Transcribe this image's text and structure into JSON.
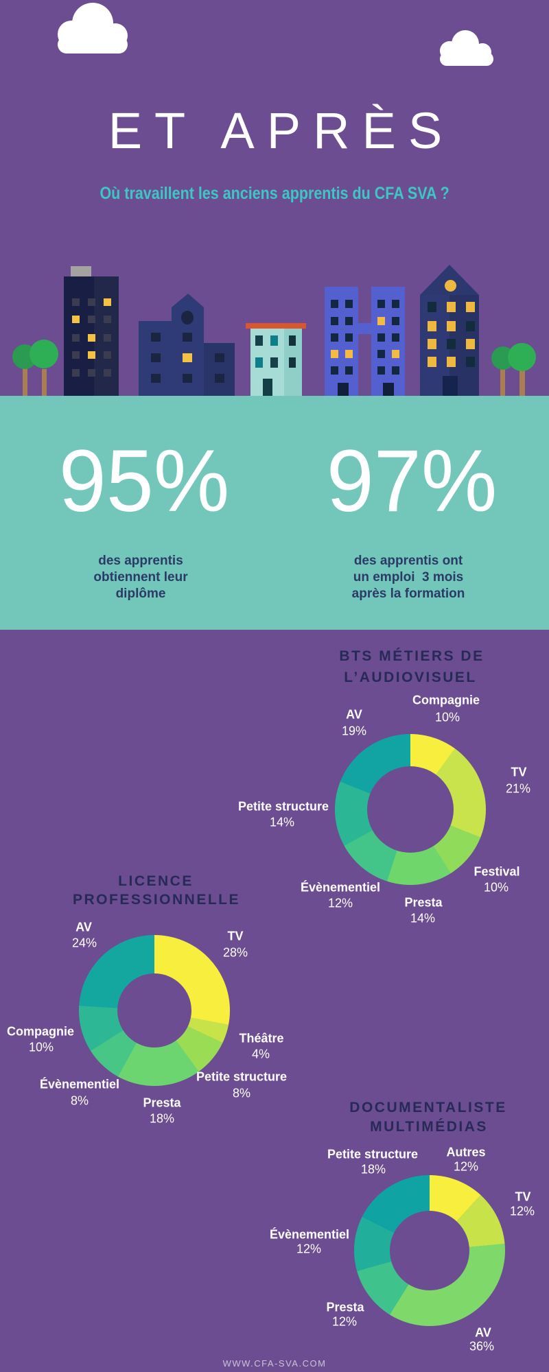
{
  "palette": {
    "background_purple": "#6C4D91",
    "band_teal": "#73C6BA",
    "subtitle_teal": "#3EC6C5",
    "heading_navy": "#262A57",
    "caption_navy": "#2B3A67",
    "label_white": "#FFFFFF"
  },
  "header": {
    "title": "ET APRÈS",
    "subtitle": "Où travaillent les anciens apprentis du CFA SVA ?"
  },
  "stats": [
    {
      "value": "95%",
      "caption_lines": [
        "des apprentis",
        "obtiennent leur",
        "diplôme"
      ]
    },
    {
      "value": "97%",
      "caption_lines": [
        "des apprentis ont",
        "un emploi  3 mois",
        "après la formation"
      ]
    }
  ],
  "chart_data": [
    {
      "type": "pie",
      "subtype": "donut",
      "title": "BTS MÉTIERS DE L’AUDIOVISUEL",
      "title_lines": [
        "BTS MÉTIERS DE",
        "L’AUDIOVISUEL"
      ],
      "legend_position": "around",
      "slices": [
        {
          "label": "Compagnie",
          "value": 10,
          "value_label": "10%",
          "color": "#F8EE3E"
        },
        {
          "label": "TV",
          "value": 21,
          "value_label": "21%",
          "color": "#C9E34C"
        },
        {
          "label": "Festival",
          "value": 10,
          "value_label": "10%",
          "color": "#90DB59"
        },
        {
          "label": "Presta",
          "value": 14,
          "value_label": "14%",
          "color": "#6FD66C"
        },
        {
          "label": "Évènementiel",
          "value": 12,
          "value_label": "12%",
          "color": "#43C489"
        },
        {
          "label": "Petite structure",
          "value": 14,
          "value_label": "14%",
          "color": "#2BB795"
        },
        {
          "label": "AV",
          "value": 19,
          "value_label": "19%",
          "color": "#12A4A3"
        }
      ]
    },
    {
      "type": "pie",
      "subtype": "donut",
      "title": "LICENCE PROFESSIONNELLE",
      "title_lines": [
        "LICENCE",
        "PROFESSIONNELLE"
      ],
      "legend_position": "around",
      "slices": [
        {
          "label": "TV",
          "value": 28,
          "value_label": "28%",
          "color": "#F8EE3E"
        },
        {
          "label": "Théâtre",
          "value": 4,
          "value_label": "4%",
          "color": "#C8E24A"
        },
        {
          "label": "Petite structure",
          "value": 8,
          "value_label": "8%",
          "color": "#9BDC55"
        },
        {
          "label": "Presta",
          "value": 18,
          "value_label": "18%",
          "color": "#6DD56F"
        },
        {
          "label": "Évènementiel",
          "value": 8,
          "value_label": "8%",
          "color": "#47C685"
        },
        {
          "label": "Compagnie",
          "value": 10,
          "value_label": "10%",
          "color": "#2DB795"
        },
        {
          "label": "AV",
          "value": 24,
          "value_label": "24%",
          "color": "#14A7A0"
        }
      ]
    },
    {
      "type": "pie",
      "subtype": "donut",
      "title": "DOCUMENTALISTE MULTIMÉDIAS",
      "title_lines": [
        "DOCUMENTALISTE",
        "MULTIMÉDIAS"
      ],
      "legend_position": "around",
      "slices": [
        {
          "label": "Autres",
          "value": 12,
          "value_label": "12%",
          "color": "#F7EE3D"
        },
        {
          "label": "TV",
          "value": 12,
          "value_label": "12%",
          "color": "#C8E24A"
        },
        {
          "label": "AV",
          "value": 36,
          "value_label": "36%",
          "color": "#7FD96A"
        },
        {
          "label": "Presta",
          "value": 12,
          "value_label": "12%",
          "color": "#3FC28C"
        },
        {
          "label": "Évènementiel",
          "value": 12,
          "value_label": "12%",
          "color": "#21AE9B"
        },
        {
          "label": "Petite structure",
          "value": 18,
          "value_label": "18%",
          "color": "#10A3A3"
        }
      ]
    }
  ],
  "footer": {
    "website": "WWW.CFA-SVA.COM"
  }
}
